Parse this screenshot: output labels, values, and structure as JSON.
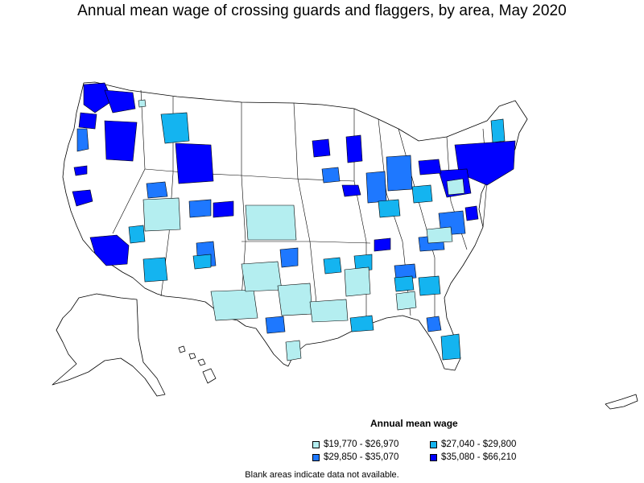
{
  "title": "Annual mean wage of crossing guards and flaggers, by area, May 2020",
  "legend": {
    "title": "Annual mean wage",
    "items": [
      {
        "label": "$19,770 - $26,970",
        "color": "#b4eef0"
      },
      {
        "label": "$27,040 - $29,800",
        "color": "#14b4f0"
      },
      {
        "label": "$29,850 - $35,070",
        "color": "#1e78ff"
      },
      {
        "label": "$35,080 - $66,210",
        "color": "#0000ff"
      }
    ]
  },
  "footnote": "Blank areas indicate data not available.",
  "colors": {
    "tier1": "#b4eef0",
    "tier2": "#14b4f0",
    "tier3": "#1e78ff",
    "tier4": "#0000ff",
    "outline": "#000000",
    "background": "#ffffff"
  }
}
